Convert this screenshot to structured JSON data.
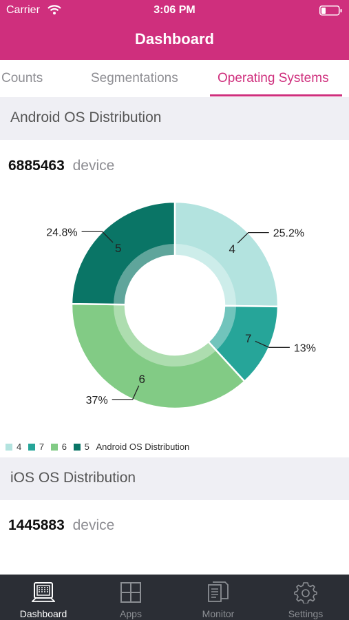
{
  "status_bar": {
    "carrier": "Carrier",
    "time": "3:06 PM"
  },
  "header": {
    "title": "Dashboard"
  },
  "tabs": [
    {
      "label": "Counts"
    },
    {
      "label": "Segmentations"
    },
    {
      "label": "Operating Systems",
      "active": true
    }
  ],
  "sections": [
    {
      "title": "Android OS Distribution",
      "count": "6885463",
      "unit": "device"
    },
    {
      "title": "iOS OS Distribution",
      "count": "1445883",
      "unit": "device"
    }
  ],
  "chart_data": {
    "type": "pie",
    "title": "",
    "legend_label": "Android OS Distribution",
    "legend_position": "bottom-left",
    "categories": [
      "4",
      "7",
      "6",
      "5"
    ],
    "values": [
      25.2,
      13,
      37,
      24.8
    ],
    "value_labels": [
      "25.2%",
      "13%",
      "37%",
      "24.8%"
    ],
    "colors": [
      "#b3e3df",
      "#26a599",
      "#82cb85",
      "#0a7566"
    ]
  },
  "tabbar": [
    {
      "label": "Dashboard",
      "icon": "dashboard-icon",
      "active": true
    },
    {
      "label": "Apps",
      "icon": "apps-grid-icon"
    },
    {
      "label": "Monitor",
      "icon": "monitor-document-icon"
    },
    {
      "label": "Settings",
      "icon": "gear-icon"
    }
  ],
  "colors": {
    "brand": "#cf2f7d",
    "tabbar": "#2b2e35",
    "section_bg": "#efeff4"
  }
}
